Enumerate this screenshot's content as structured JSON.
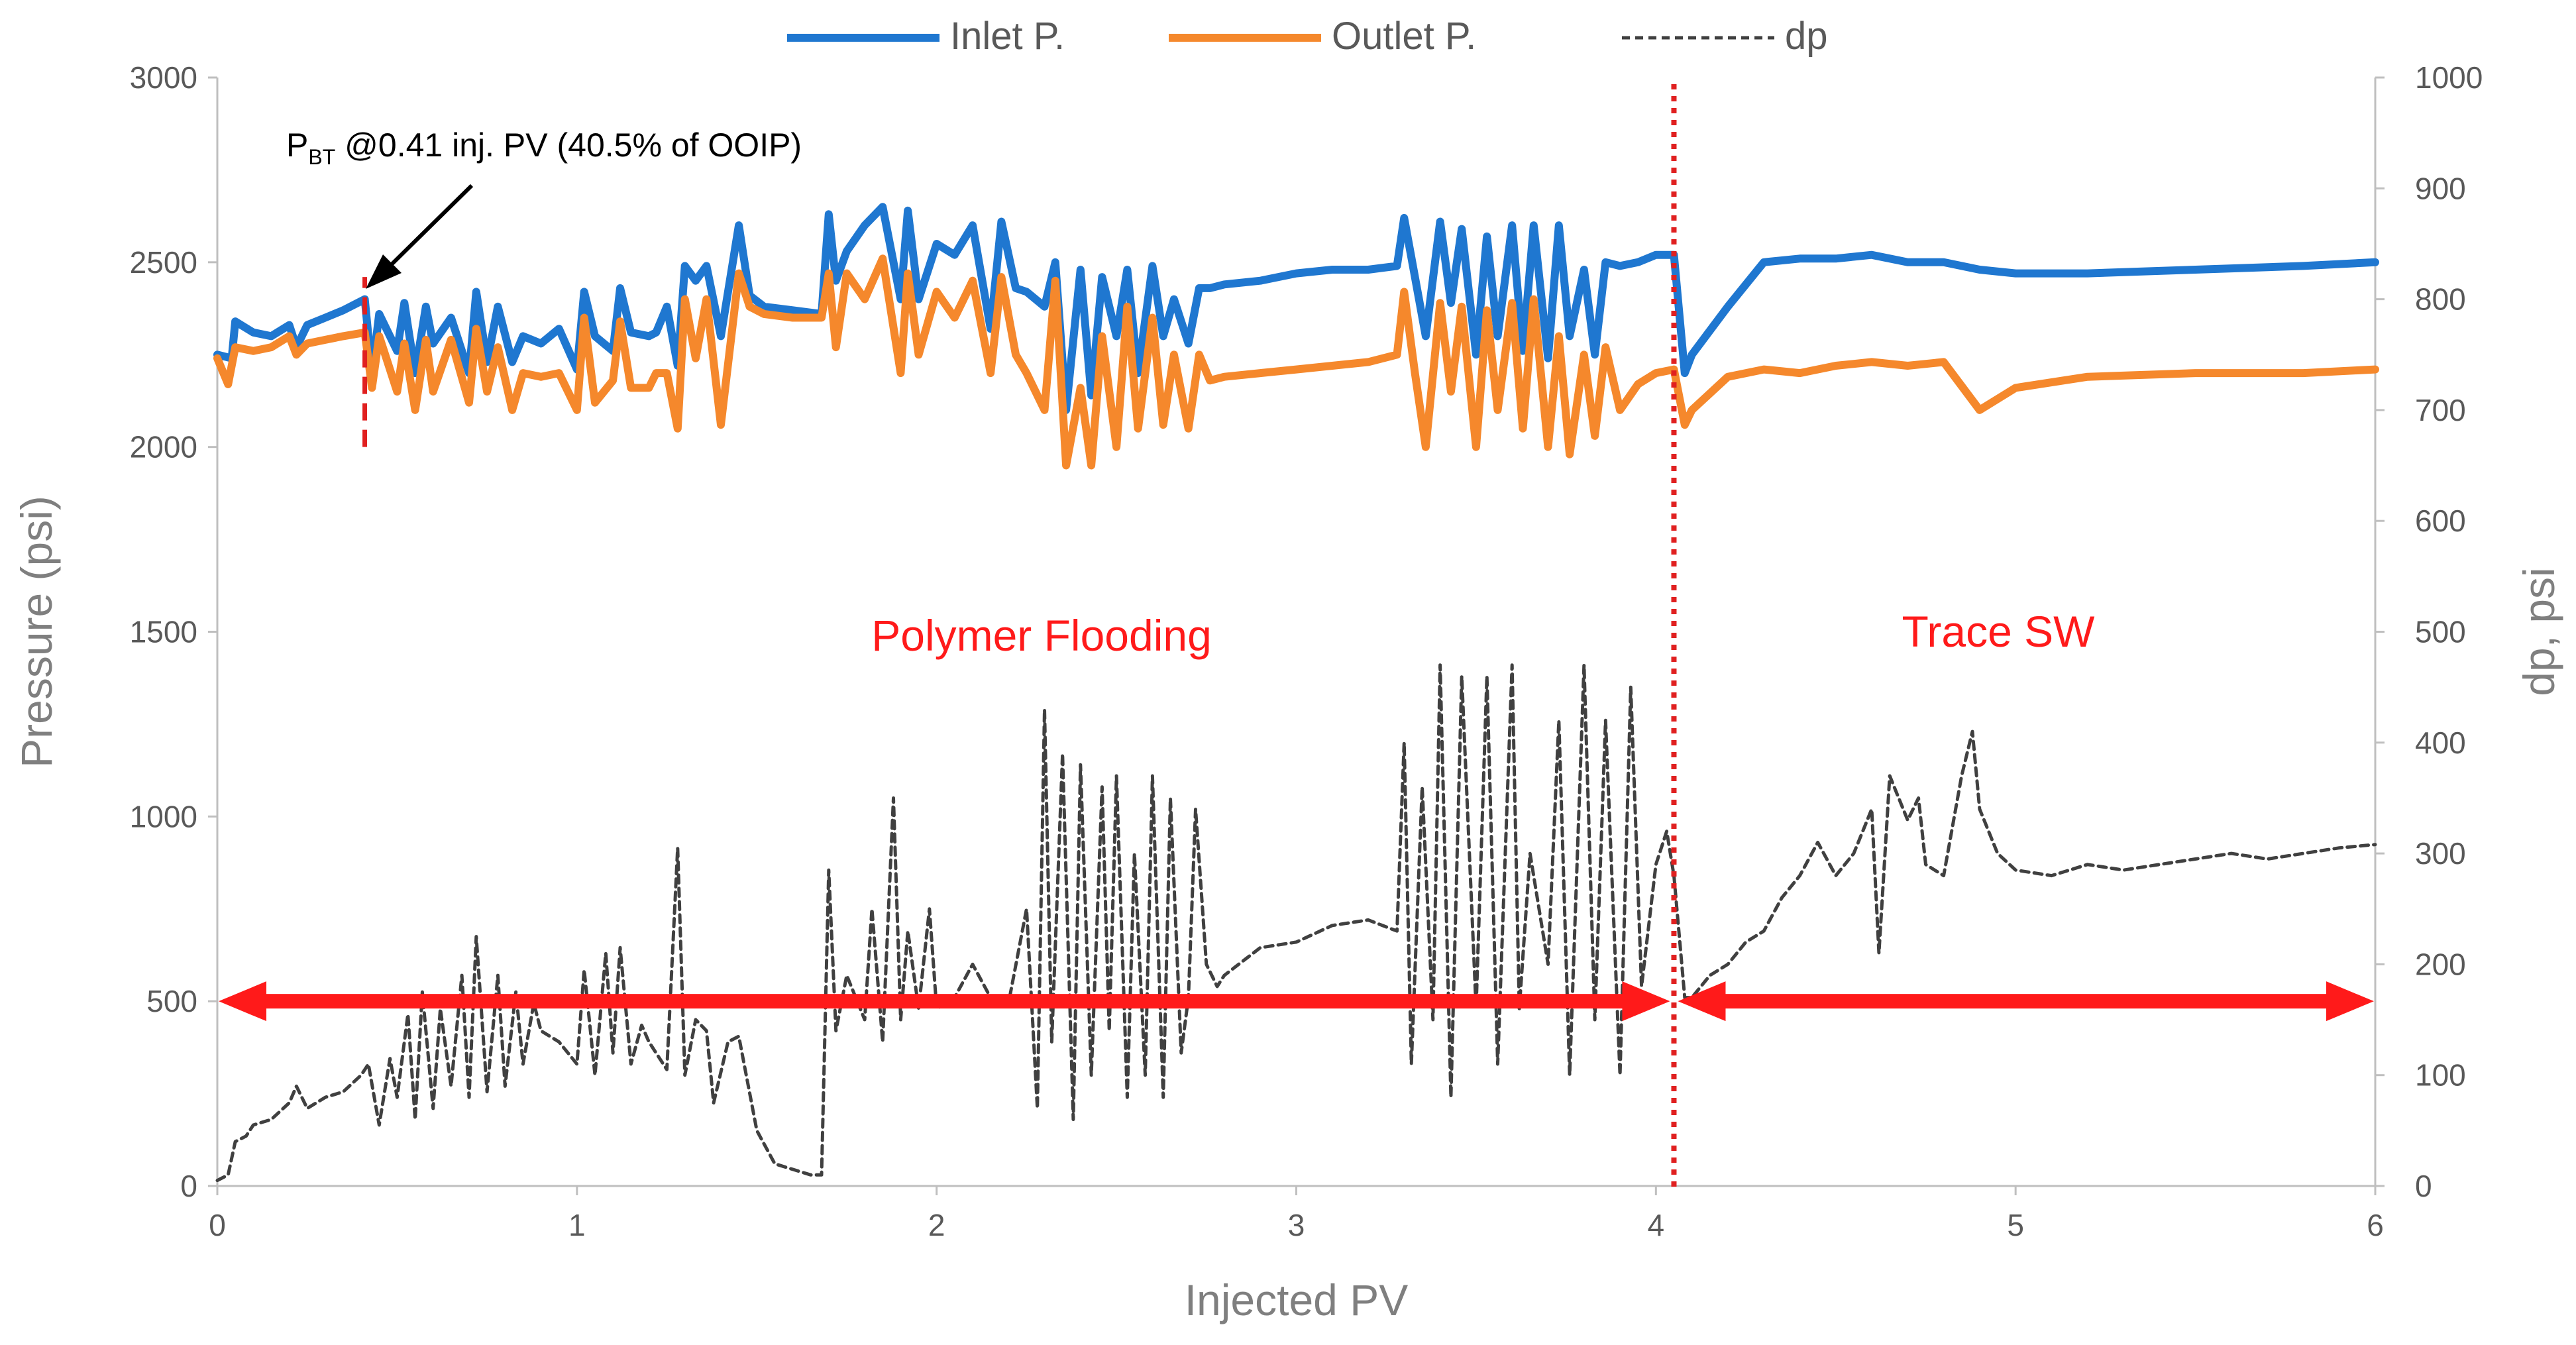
{
  "chart_data": {
    "type": "line",
    "xlabel": "Injected PV",
    "ylabel_left": "Pressure (psi)",
    "ylabel_right": "dp, psi",
    "xlim": [
      0,
      6
    ],
    "ylim_left": [
      0,
      3000
    ],
    "ylim_right": [
      0,
      1000
    ],
    "x_ticks": [
      0,
      1,
      2,
      3,
      4,
      5,
      6
    ],
    "y_ticks_left": [
      0,
      500,
      1000,
      1500,
      2000,
      2500,
      3000
    ],
    "y_ticks_right": [
      0,
      100,
      200,
      300,
      400,
      500,
      600,
      700,
      800,
      900,
      1000
    ],
    "grid": false,
    "legend": {
      "position": "top-center",
      "entries": [
        {
          "name": "Inlet P.",
          "color": "#1F77D0",
          "style": "solid"
        },
        {
          "name": "Outlet P.",
          "color": "#F5882C",
          "style": "solid"
        },
        {
          "name": "dp",
          "color": "#404040",
          "style": "dashed"
        }
      ]
    },
    "series": [
      {
        "name": "Inlet P.",
        "axis": "left",
        "color": "#1F77D0",
        "x": [
          0,
          0.04,
          0.05,
          0.1,
          0.15,
          0.2,
          0.22,
          0.25,
          0.3,
          0.35,
          0.41,
          0.43,
          0.45,
          0.5,
          0.52,
          0.55,
          0.58,
          0.6,
          0.65,
          0.7,
          0.72,
          0.75,
          0.78,
          0.82,
          0.85,
          0.9,
          0.95,
          1.0,
          1.02,
          1.05,
          1.1,
          1.12,
          1.15,
          1.2,
          1.22,
          1.25,
          1.28,
          1.3,
          1.33,
          1.36,
          1.4,
          1.45,
          1.48,
          1.52,
          1.6,
          1.68,
          1.7,
          1.72,
          1.75,
          1.8,
          1.85,
          1.9,
          1.92,
          1.95,
          2.0,
          2.05,
          2.1,
          2.15,
          2.18,
          2.22,
          2.25,
          2.3,
          2.33,
          2.36,
          2.4,
          2.43,
          2.46,
          2.5,
          2.53,
          2.56,
          2.6,
          2.63,
          2.66,
          2.7,
          2.73,
          2.76,
          2.8,
          2.9,
          3.0,
          3.1,
          3.2,
          3.28,
          3.3,
          3.33,
          3.36,
          3.4,
          3.43,
          3.46,
          3.5,
          3.53,
          3.56,
          3.6,
          3.63,
          3.66,
          3.7,
          3.73,
          3.76,
          3.8,
          3.83,
          3.86,
          3.9,
          3.95,
          4.0,
          4.05,
          4.08,
          4.1,
          4.2,
          4.3,
          4.4,
          4.5,
          4.6,
          4.7,
          4.8,
          4.9,
          5.0,
          5.2,
          5.5,
          5.8,
          6.0
        ],
        "y": [
          2250,
          2240,
          2340,
          2310,
          2300,
          2330,
          2270,
          2330,
          2350,
          2370,
          2400,
          2200,
          2360,
          2260,
          2390,
          2200,
          2380,
          2280,
          2350,
          2200,
          2420,
          2230,
          2380,
          2230,
          2300,
          2280,
          2320,
          2210,
          2420,
          2300,
          2260,
          2430,
          2310,
          2300,
          2310,
          2380,
          2220,
          2490,
          2450,
          2490,
          2300,
          2600,
          2410,
          2380,
          2370,
          2360,
          2630,
          2450,
          2530,
          2600,
          2650,
          2400,
          2640,
          2400,
          2550,
          2520,
          2600,
          2320,
          2610,
          2430,
          2420,
          2380,
          2500,
          2100,
          2480,
          2140,
          2460,
          2300,
          2480,
          2200,
          2490,
          2300,
          2400,
          2280,
          2430,
          2430,
          2440,
          2450,
          2470,
          2480,
          2480,
          2490,
          2620,
          2460,
          2300,
          2610,
          2390,
          2590,
          2250,
          2570,
          2300,
          2600,
          2260,
          2600,
          2240,
          2600,
          2300,
          2480,
          2250,
          2500,
          2490,
          2500,
          2520,
          2520,
          2200,
          2250,
          2380,
          2500,
          2510,
          2510,
          2520,
          2500,
          2500,
          2480,
          2470,
          2470,
          2480,
          2490,
          2500
        ]
      },
      {
        "name": "Outlet P.",
        "axis": "left",
        "color": "#F5882C",
        "x": [
          0,
          0.03,
          0.05,
          0.1,
          0.15,
          0.2,
          0.22,
          0.25,
          0.3,
          0.35,
          0.41,
          0.43,
          0.45,
          0.5,
          0.52,
          0.55,
          0.58,
          0.6,
          0.65,
          0.7,
          0.72,
          0.75,
          0.78,
          0.82,
          0.85,
          0.9,
          0.95,
          1.0,
          1.02,
          1.05,
          1.1,
          1.12,
          1.15,
          1.2,
          1.22,
          1.25,
          1.28,
          1.3,
          1.33,
          1.36,
          1.4,
          1.45,
          1.48,
          1.52,
          1.6,
          1.68,
          1.7,
          1.72,
          1.75,
          1.8,
          1.85,
          1.9,
          1.92,
          1.95,
          2.0,
          2.05,
          2.1,
          2.15,
          2.18,
          2.22,
          2.25,
          2.3,
          2.33,
          2.36,
          2.4,
          2.43,
          2.46,
          2.5,
          2.53,
          2.56,
          2.6,
          2.63,
          2.66,
          2.7,
          2.73,
          2.76,
          2.8,
          2.9,
          3.0,
          3.1,
          3.2,
          3.28,
          3.3,
          3.33,
          3.36,
          3.4,
          3.43,
          3.46,
          3.5,
          3.53,
          3.56,
          3.6,
          3.63,
          3.66,
          3.7,
          3.73,
          3.76,
          3.8,
          3.83,
          3.86,
          3.9,
          3.95,
          4.0,
          4.05,
          4.08,
          4.1,
          4.2,
          4.3,
          4.4,
          4.5,
          4.6,
          4.7,
          4.8,
          4.9,
          5.0,
          5.2,
          5.5,
          5.8,
          6.0
        ],
        "y": [
          2240,
          2170,
          2270,
          2260,
          2270,
          2300,
          2250,
          2280,
          2290,
          2300,
          2310,
          2160,
          2300,
          2150,
          2280,
          2100,
          2290,
          2150,
          2290,
          2120,
          2320,
          2150,
          2270,
          2100,
          2200,
          2190,
          2200,
          2100,
          2350,
          2120,
          2180,
          2340,
          2160,
          2160,
          2200,
          2200,
          2050,
          2400,
          2240,
          2400,
          2060,
          2470,
          2380,
          2360,
          2350,
          2350,
          2470,
          2270,
          2470,
          2400,
          2510,
          2200,
          2470,
          2250,
          2420,
          2350,
          2450,
          2200,
          2460,
          2250,
          2200,
          2100,
          2450,
          1950,
          2160,
          1950,
          2300,
          2000,
          2380,
          2050,
          2350,
          2060,
          2250,
          2050,
          2250,
          2180,
          2190,
          2200,
          2210,
          2220,
          2230,
          2250,
          2420,
          2200,
          2000,
          2390,
          2150,
          2380,
          2000,
          2370,
          2100,
          2390,
          2050,
          2400,
          2000,
          2300,
          1980,
          2250,
          2030,
          2270,
          2100,
          2170,
          2200,
          2210,
          2060,
          2100,
          2190,
          2210,
          2200,
          2220,
          2230,
          2220,
          2230,
          2100,
          2160,
          2190,
          2200,
          2200,
          2210
        ]
      },
      {
        "name": "dp",
        "axis": "right",
        "color": "#404040",
        "x": [
          0,
          0.03,
          0.05,
          0.08,
          0.1,
          0.15,
          0.2,
          0.22,
          0.25,
          0.3,
          0.35,
          0.4,
          0.42,
          0.45,
          0.48,
          0.5,
          0.53,
          0.55,
          0.57,
          0.6,
          0.62,
          0.65,
          0.68,
          0.7,
          0.72,
          0.75,
          0.78,
          0.8,
          0.83,
          0.85,
          0.88,
          0.9,
          0.95,
          1.0,
          1.02,
          1.05,
          1.08,
          1.1,
          1.12,
          1.15,
          1.18,
          1.2,
          1.25,
          1.28,
          1.3,
          1.33,
          1.36,
          1.38,
          1.42,
          1.45,
          1.5,
          1.55,
          1.6,
          1.65,
          1.68,
          1.7,
          1.72,
          1.75,
          1.8,
          1.82,
          1.85,
          1.88,
          1.9,
          1.92,
          1.95,
          1.98,
          2.0,
          2.05,
          2.1,
          2.15,
          2.2,
          2.25,
          2.28,
          2.3,
          2.32,
          2.35,
          2.38,
          2.4,
          2.43,
          2.46,
          2.48,
          2.5,
          2.53,
          2.55,
          2.58,
          2.6,
          2.63,
          2.65,
          2.68,
          2.7,
          2.72,
          2.75,
          2.78,
          2.8,
          2.9,
          3.0,
          3.1,
          3.2,
          3.28,
          3.3,
          3.32,
          3.35,
          3.38,
          3.4,
          3.43,
          3.46,
          3.5,
          3.53,
          3.56,
          3.6,
          3.62,
          3.65,
          3.7,
          3.73,
          3.76,
          3.8,
          3.83,
          3.86,
          3.9,
          3.93,
          3.96,
          4.0,
          4.03,
          4.05,
          4.08,
          4.1,
          4.15,
          4.2,
          4.25,
          4.3,
          4.35,
          4.4,
          4.45,
          4.5,
          4.55,
          4.6,
          4.62,
          4.65,
          4.7,
          4.73,
          4.75,
          4.8,
          4.85,
          4.88,
          4.9,
          4.95,
          5.0,
          5.1,
          5.2,
          5.3,
          5.4,
          5.5,
          5.6,
          5.7,
          5.8,
          5.9,
          6.0
        ],
        "y": [
          5,
          10,
          40,
          45,
          55,
          60,
          75,
          90,
          70,
          80,
          85,
          100,
          110,
          55,
          115,
          80,
          155,
          60,
          175,
          70,
          160,
          90,
          190,
          80,
          225,
          85,
          190,
          90,
          175,
          110,
          165,
          140,
          130,
          110,
          195,
          100,
          210,
          120,
          215,
          110,
          145,
          130,
          105,
          305,
          100,
          150,
          140,
          75,
          130,
          135,
          50,
          20,
          15,
          10,
          10,
          285,
          140,
          190,
          150,
          250,
          130,
          350,
          150,
          230,
          160,
          250,
          160,
          170,
          200,
          170,
          165,
          250,
          70,
          430,
          130,
          390,
          60,
          380,
          100,
          360,
          140,
          370,
          80,
          300,
          100,
          370,
          80,
          350,
          120,
          170,
          340,
          200,
          180,
          190,
          215,
          220,
          235,
          240,
          230,
          400,
          110,
          360,
          150,
          470,
          80,
          460,
          160,
          460,
          110,
          470,
          160,
          300,
          200,
          420,
          100,
          470,
          150,
          420,
          100,
          450,
          180,
          290,
          320,
          280,
          170,
          170,
          190,
          200,
          220,
          230,
          260,
          280,
          310,
          280,
          300,
          340,
          210,
          370,
          330,
          350,
          290,
          280,
          370,
          410,
          340,
          300,
          285,
          280,
          290,
          285,
          290,
          295,
          300,
          295,
          300,
          305,
          308
        ]
      }
    ],
    "annotations": {
      "breakthrough_text_main": "P",
      "breakthrough_text_sub": "BT",
      "breakthrough_text_rest": " @0.41 inj. PV (40.5% of OOIP)",
      "breakthrough_x": 0.41,
      "breakthrough_line_range": [
        2000,
        2460
      ],
      "breakthrough_color": "#E02020",
      "phase_boundary_x": 4.05,
      "phase_boundary_color": "#E02020",
      "phase_arrow_y": 500,
      "phase_arrow_color": "#FF1A1A",
      "region_1_label": "Polymer Flooding",
      "region_2_label": "Trace SW",
      "region_label_color": "#FF1A1A"
    }
  }
}
